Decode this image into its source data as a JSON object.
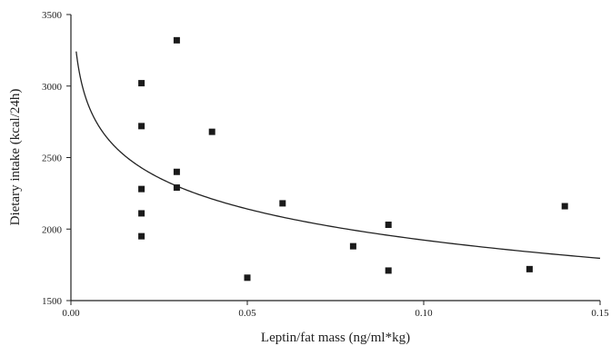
{
  "chart_data": {
    "type": "scatter",
    "title": "",
    "xlabel": "Leptin/fat mass (ng/ml*kg)",
    "ylabel": "Dietary intake (kcal/24h)",
    "xlim": [
      0.0,
      0.15
    ],
    "ylim": [
      1500,
      3500
    ],
    "x_ticks": [
      0.0,
      0.05,
      0.1,
      0.15
    ],
    "x_tick_labels": [
      "0.00",
      "0.05",
      "0.10",
      "0.15"
    ],
    "y_ticks": [
      1500,
      2000,
      2500,
      3000,
      3500
    ],
    "y_tick_labels": [
      "1500",
      "2000",
      "2500",
      "3000",
      "3500"
    ],
    "grid": false,
    "legend": "none",
    "marker_color": "#1a1a1a",
    "points": [
      {
        "x": 0.02,
        "y": 3020
      },
      {
        "x": 0.02,
        "y": 2720
      },
      {
        "x": 0.02,
        "y": 2280
      },
      {
        "x": 0.02,
        "y": 2110
      },
      {
        "x": 0.02,
        "y": 1950
      },
      {
        "x": 0.03,
        "y": 3320
      },
      {
        "x": 0.03,
        "y": 2400
      },
      {
        "x": 0.03,
        "y": 2290
      },
      {
        "x": 0.04,
        "y": 2680
      },
      {
        "x": 0.05,
        "y": 1660
      },
      {
        "x": 0.06,
        "y": 2180
      },
      {
        "x": 0.08,
        "y": 1880
      },
      {
        "x": 0.09,
        "y": 2030
      },
      {
        "x": 0.09,
        "y": 1710
      },
      {
        "x": 0.13,
        "y": 1720
      },
      {
        "x": 0.14,
        "y": 2160
      }
    ],
    "fit_curve": {
      "type": "logarithmic",
      "equation": "y = 1200 - 314 * ln(x)",
      "x_range": [
        0.0015,
        0.15
      ]
    }
  }
}
